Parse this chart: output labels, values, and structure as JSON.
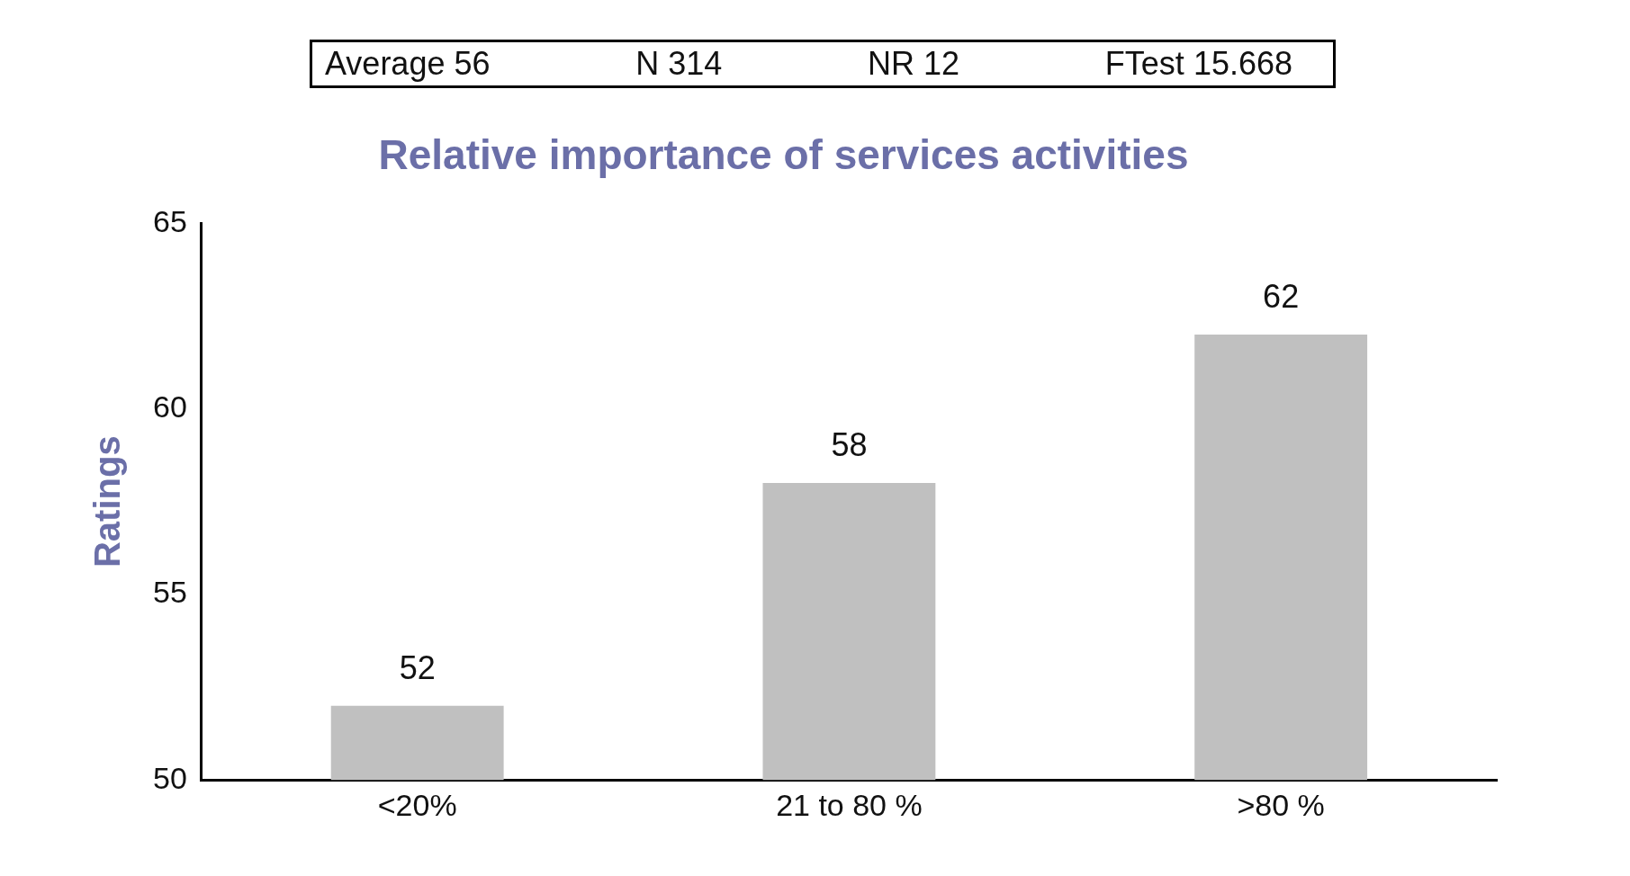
{
  "chart_data": {
    "type": "bar",
    "title": "Relative importance of services activities",
    "ylabel": "Ratings",
    "categories": [
      "<20%",
      "21 to 80 %",
      ">80 %"
    ],
    "values": [
      52,
      58,
      62
    ],
    "color": "#c0c0c0",
    "ylim": [
      50,
      65
    ],
    "yticks": [
      50,
      55,
      60,
      65
    ],
    "grid": false,
    "legend": false,
    "data_labels": true,
    "annotations": [
      "Average 56",
      "N 314",
      "NR 12",
      "FTest 15.668"
    ]
  }
}
